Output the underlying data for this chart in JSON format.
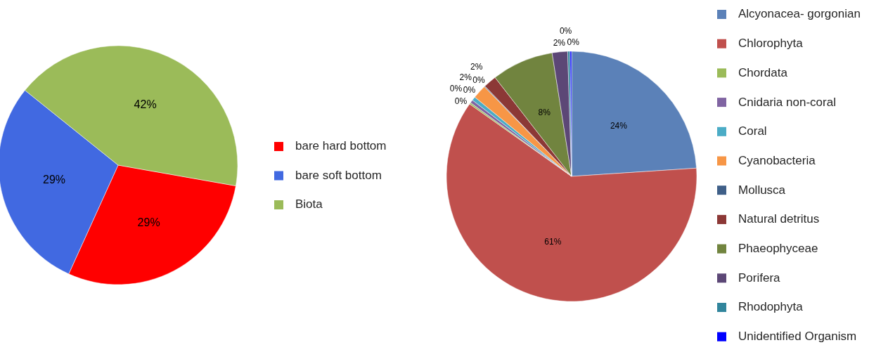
{
  "chart_data": [
    {
      "type": "pie",
      "categories": [
        "bare hard bottom",
        "bare soft bottom",
        "Biota"
      ],
      "values": [
        29,
        29,
        42
      ],
      "colors": [
        "#ff0000",
        "#4169e1",
        "#9bbb59"
      ],
      "value_labels": [
        "29%",
        "29%",
        "42%"
      ],
      "legend": "right"
    },
    {
      "type": "pie",
      "categories": [
        "Alcyonacea- gorgonian",
        "Chlorophyta",
        "Chordata",
        "Cnidaria non-coral",
        "Coral",
        "Cyanobacteria",
        "Mollusca",
        "Natural detritus",
        "Phaeophyceae",
        "Porifera",
        "Rhodophyta",
        "Unidentified Organism"
      ],
      "values": [
        24,
        61,
        0.2,
        0.4,
        0.5,
        1.8,
        0.1,
        1.7,
        8,
        2,
        0.3,
        0.2
      ],
      "colors": [
        "#5b81b8",
        "#c0504d",
        "#9bbb59",
        "#8064a2",
        "#4bacc6",
        "#f79646",
        "#3f5f88",
        "#8c3836",
        "#71843f",
        "#5c4776",
        "#31859c",
        "#0000ff"
      ],
      "value_labels": [
        "24%",
        "61%",
        "0%",
        "0%",
        "0%",
        "2%",
        "0%",
        "2%",
        "8%",
        "2%",
        "0%",
        "0%"
      ],
      "legend": "right"
    }
  ]
}
